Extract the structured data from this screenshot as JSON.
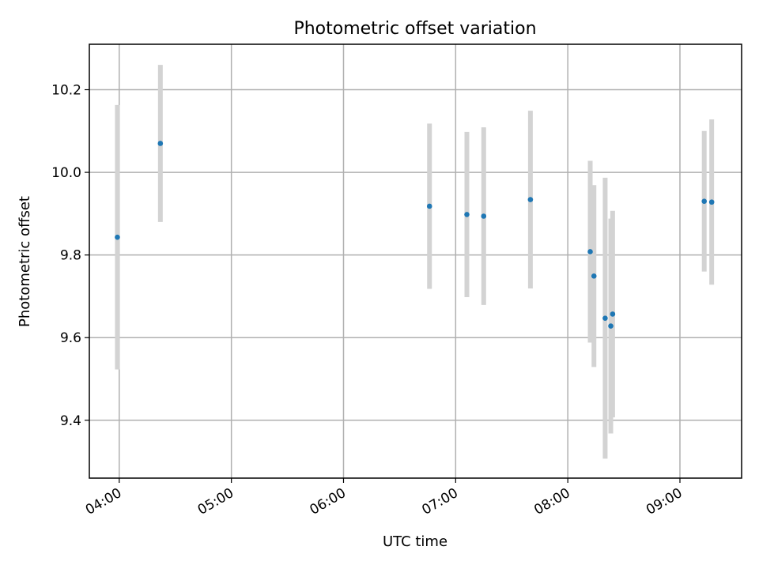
{
  "chart_data": {
    "type": "scatter",
    "title": "Photometric offset variation",
    "xlabel": "UTC time",
    "ylabel": "Photometric offset",
    "x_unit": "UTC time (HH:MM)",
    "xlim": [
      "03:44",
      "09:33"
    ],
    "ylim": [
      9.26,
      10.31
    ],
    "x_ticks": [
      "04:00",
      "05:00",
      "06:00",
      "07:00",
      "08:00",
      "09:00"
    ],
    "y_ticks": [
      "9.4",
      "9.6",
      "9.8",
      "10.0",
      "10.2"
    ],
    "grid": true,
    "marker_color": "#1f77b4",
    "errorbar_color": "#d3d3d3",
    "points": [
      {
        "x": "03:59",
        "y": 9.843,
        "err": 0.32
      },
      {
        "x": "04:22",
        "y": 10.07,
        "err": 0.19
      },
      {
        "x": "06:46",
        "y": 9.918,
        "err": 0.2
      },
      {
        "x": "07:06",
        "y": 9.898,
        "err": 0.2
      },
      {
        "x": "07:15",
        "y": 9.894,
        "err": 0.215
      },
      {
        "x": "07:40",
        "y": 9.934,
        "err": 0.215
      },
      {
        "x": "08:12",
        "y": 9.808,
        "err": 0.22
      },
      {
        "x": "08:14",
        "y": 9.749,
        "err": 0.22
      },
      {
        "x": "08:20",
        "y": 9.647,
        "err": 0.34
      },
      {
        "x": "08:23",
        "y": 9.628,
        "err": 0.26
      },
      {
        "x": "08:24",
        "y": 9.657,
        "err": 0.25
      },
      {
        "x": "09:13",
        "y": 9.93,
        "err": 0.17
      },
      {
        "x": "09:17",
        "y": 9.928,
        "err": 0.2
      }
    ]
  }
}
